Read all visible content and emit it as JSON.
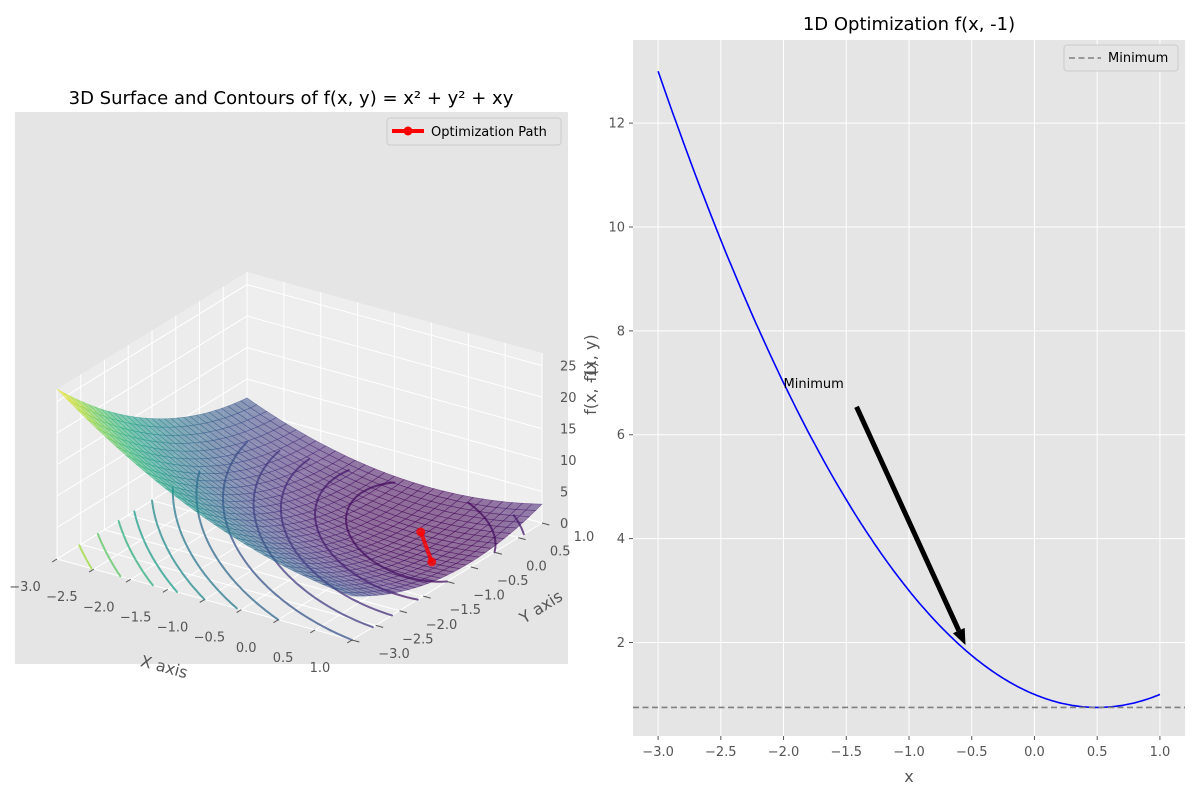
{
  "chart_data": [
    {
      "type": "surface3d",
      "title": "3D Surface and Contours of f(x, y) = x² + y² + xy",
      "function": "x² + y² + xy",
      "xlabel": "X axis",
      "ylabel": "Y axis",
      "zlabel": "f(x, y)",
      "xlim": [
        -3,
        1
      ],
      "ylim": [
        -3,
        1
      ],
      "zlim": [
        0,
        27
      ],
      "x_ticks": [
        "−3.0",
        "−2.5",
        "−2.0",
        "−1.5",
        "−1.0",
        "−0.5",
        "0.0",
        "0.5",
        "1.0"
      ],
      "y_ticks": [
        "−3.0",
        "−2.5",
        "−2.0",
        "−1.5",
        "−1.0",
        "−0.5",
        "0.0",
        "0.5",
        "1.0"
      ],
      "z_ticks": [
        "0",
        "5",
        "10",
        "15",
        "20",
        "25"
      ],
      "colormap": "viridis",
      "contour_levels": [
        1,
        2,
        3.5,
        5,
        7,
        9,
        11,
        13,
        15,
        17,
        20,
        23
      ],
      "series": [
        {
          "name": "Optimization Path",
          "color": "#ff0000",
          "points": [
            {
              "x": 0.0,
              "y": 0.0,
              "z": 0.0
            },
            {
              "x": 0.6,
              "y": -0.7,
              "z": 0.43
            }
          ]
        }
      ],
      "grid": true,
      "legend": "top-right"
    },
    {
      "type": "line",
      "title": "1D Optimization f(x, -1)",
      "function": "x² - x + 1",
      "xlabel": "x",
      "ylabel": "f(x, -1)",
      "xlim": [
        -3.2,
        1.2
      ],
      "ylim": [
        0.2,
        13.6
      ],
      "x_ticks": [
        "−3.0",
        "−2.5",
        "−2.0",
        "−1.5",
        "−1.0",
        "−0.5",
        "0.0",
        "0.5",
        "1.0"
      ],
      "y_ticks": [
        "2",
        "4",
        "6",
        "8",
        "10",
        "12"
      ],
      "x_range": [
        -3,
        1
      ],
      "series": [
        {
          "name": "",
          "color": "#0000ff",
          "style": "solid"
        },
        {
          "name": "Minimum",
          "color": "#808080",
          "style": "dashed",
          "y": 0.75
        }
      ],
      "annotation": {
        "text": "Minimum",
        "xytext": [
          -2.0,
          7.0
        ],
        "xy": [
          -0.55,
          1.95
        ]
      },
      "grid": true,
      "legend": "top-right"
    }
  ]
}
